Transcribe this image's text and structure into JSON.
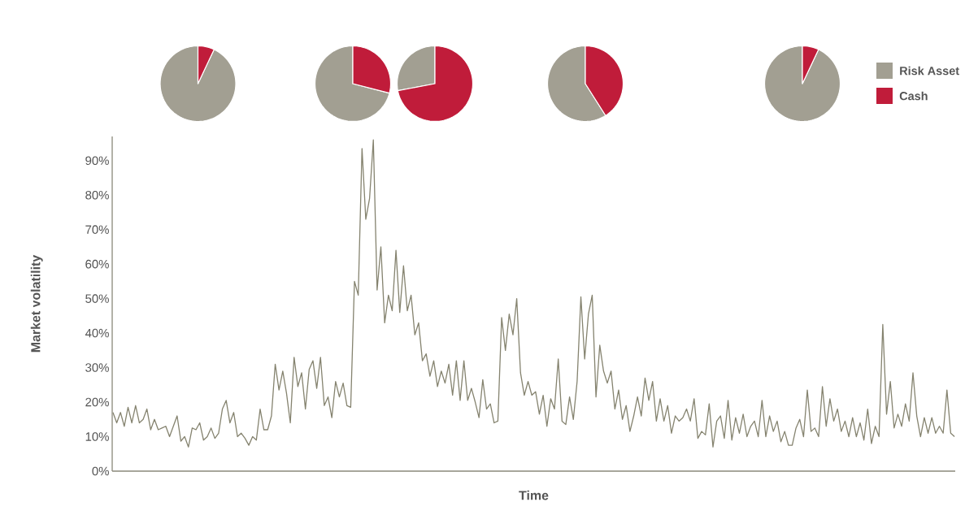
{
  "chart_data": [
    {
      "type": "pie",
      "categories": [
        null,
        null
      ],
      "values": [
        93,
        7
      ],
      "colors": [
        "#a29f92",
        "#c01c3a"
      ]
    },
    {
      "type": "pie",
      "categories": [
        null,
        null
      ],
      "values": [
        71,
        29
      ],
      "colors": [
        "#a29f92",
        "#c01c3a"
      ]
    },
    {
      "type": "pie",
      "categories": [
        null,
        null
      ],
      "values": [
        28,
        72
      ],
      "colors": [
        "#a29f92",
        "#c01c3a"
      ]
    },
    {
      "type": "pie",
      "categories": [
        null,
        null
      ],
      "values": [
        59,
        41
      ],
      "colors": [
        "#a29f92",
        "#c01c3a"
      ]
    },
    {
      "type": "pie",
      "categories": [
        "Risk Asset",
        "Cash"
      ],
      "values": [
        93,
        7
      ],
      "colors": [
        "#a29f92",
        "#c01c3a"
      ],
      "legend": "right"
    },
    {
      "type": "line",
      "xlabel": "Time",
      "ylabel": "Market volatility",
      "tick_labels": "y",
      "ylim": [
        0,
        97
      ],
      "yticks": [
        {
          "value": 0,
          "label": "0%"
        },
        {
          "value": 10,
          "label": "10%"
        },
        {
          "value": 20,
          "label": "20%"
        },
        {
          "value": 30,
          "label": "30%"
        },
        {
          "value": 40,
          "label": "40%"
        },
        {
          "value": 50,
          "label": "50%"
        },
        {
          "value": 60,
          "label": "60%"
        },
        {
          "value": 70,
          "label": "70%"
        },
        {
          "value": 80,
          "label": "80%"
        },
        {
          "value": 90,
          "label": "90%"
        }
      ],
      "categories": [
        null,
        null,
        null,
        null,
        null,
        null,
        null,
        null,
        null,
        null,
        null,
        null,
        null,
        null,
        null,
        null,
        null,
        null,
        null,
        null,
        null,
        null,
        null,
        null,
        null,
        null,
        null,
        null,
        null,
        null,
        null,
        null,
        null,
        null,
        null,
        null,
        null,
        null,
        null,
        null,
        null,
        null,
        null,
        null,
        null,
        null,
        null,
        null,
        null,
        null,
        null,
        null,
        null,
        null,
        null,
        null,
        null,
        null,
        null,
        null,
        null,
        null,
        null,
        null,
        null,
        null,
        null,
        null,
        null,
        null,
        null,
        null,
        null,
        null,
        null,
        null,
        null,
        null,
        null,
        null,
        null,
        null,
        null,
        null,
        null,
        null,
        null,
        null,
        null,
        null,
        null,
        null,
        null,
        null,
        null,
        null,
        null,
        null,
        null,
        null,
        null,
        null,
        null,
        null,
        null,
        null,
        null,
        null,
        null,
        null,
        null,
        null,
        null,
        null,
        null,
        null,
        null,
        null,
        null,
        null,
        null,
        null,
        null,
        null,
        null,
        null,
        null,
        null,
        null,
        null,
        null,
        null,
        null,
        null,
        null,
        null,
        null,
        null,
        null,
        null,
        null,
        null,
        null,
        null,
        null,
        null,
        null,
        null,
        null,
        null,
        null,
        null,
        null,
        null,
        null,
        null,
        null,
        null,
        null,
        null,
        null,
        null,
        null,
        null,
        null,
        null,
        null,
        null,
        null,
        null,
        null,
        null,
        null,
        null,
        null,
        null,
        null,
        null,
        null,
        null,
        null,
        null,
        null,
        null,
        null,
        null,
        null,
        null,
        null,
        null,
        null,
        null,
        null,
        null,
        null,
        null,
        null,
        null,
        null,
        null,
        null,
        null,
        null,
        null,
        null,
        null,
        null,
        null,
        null,
        null,
        null,
        null,
        null,
        null,
        null,
        null,
        null,
        null,
        null,
        null,
        null,
        null,
        null,
        null
      ],
      "series": [
        {
          "color": "#85836f",
          "values": [
            17,
            14,
            17,
            13,
            18.5,
            14,
            19,
            14,
            15,
            18,
            12,
            15,
            12,
            12.5,
            13,
            10,
            13,
            16,
            8.7,
            10,
            7,
            12.5,
            12,
            14,
            9,
            10,
            12.5,
            9.5,
            11,
            18,
            20.5,
            14,
            17,
            10,
            11,
            9.5,
            7.5,
            10,
            9,
            18,
            12,
            12,
            16,
            31,
            23.5,
            29,
            22.5,
            14,
            33,
            24.5,
            28.5,
            18,
            29.5,
            32,
            24,
            33,
            19,
            21.5,
            15.5,
            26,
            21.5,
            25.5,
            19,
            18.5,
            55,
            51,
            93.5,
            73,
            79,
            96,
            52.5,
            65,
            43,
            51,
            46.5,
            64,
            46,
            59.5,
            46.5,
            51,
            39.5,
            43,
            32,
            34,
            27.5,
            32,
            24.5,
            29,
            25.5,
            31,
            22,
            32,
            20.5,
            32,
            20.5,
            24,
            20,
            15.5,
            26.5,
            18,
            19.5,
            14,
            14.5,
            44.5,
            35,
            45.5,
            39.5,
            50,
            28.5,
            22,
            26,
            22,
            23,
            16.5,
            22,
            13,
            21,
            18,
            32.5,
            14.5,
            13.5,
            21.5,
            15,
            26,
            50.5,
            32.5,
            45.5,
            51,
            21.5,
            36.5,
            29,
            25.5,
            29,
            18,
            23.5,
            15,
            19,
            11.5,
            16,
            21.5,
            16,
            27,
            20.5,
            26,
            14.5,
            21,
            14.5,
            19,
            11,
            16,
            14.5,
            15.5,
            18,
            14.5,
            21,
            9.5,
            11.5,
            10.5,
            19.5,
            7,
            14.5,
            16,
            9.5,
            20.5,
            9,
            15.5,
            11,
            16.5,
            10,
            13,
            14.5,
            10,
            20.5,
            10,
            16,
            11.5,
            14.5,
            8.5,
            11.5,
            7.5,
            7.5,
            12.5,
            15,
            10,
            23.5,
            11.5,
            12.5,
            10,
            24.5,
            13,
            21,
            14.5,
            18,
            11.5,
            14.5,
            10,
            15.5,
            10,
            14,
            9,
            18,
            8,
            13,
            10,
            42.5,
            16.5,
            26,
            12.5,
            16.5,
            13,
            19.5,
            14.5,
            28.5,
            16,
            10,
            15.5,
            11,
            15.5,
            11,
            13,
            11,
            23.5,
            11,
            10
          ]
        }
      ]
    }
  ]
}
